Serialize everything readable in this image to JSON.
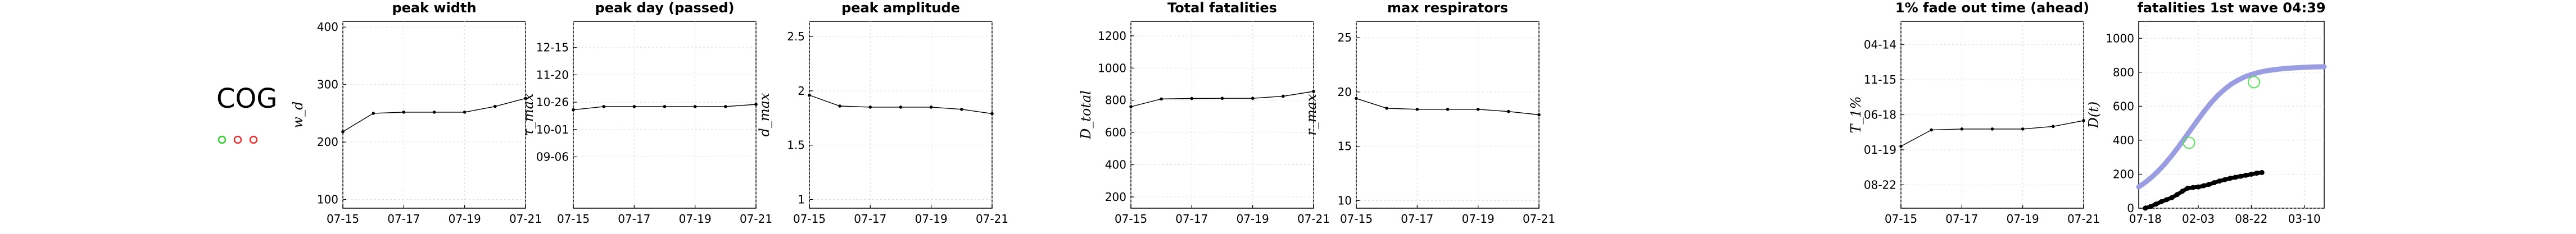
{
  "country": {
    "code": "COG",
    "markers": [
      {
        "color": "#33cc33"
      },
      {
        "color": "#e03030"
      },
      {
        "color": "#e03030"
      }
    ]
  },
  "chart_data": [
    {
      "type": "line",
      "title": "peak width",
      "ylabel": "w_d",
      "x": [
        "07-15",
        "07-16",
        "07-17",
        "07-18",
        "07-19",
        "07-20",
        "07-21"
      ],
      "x_ticks": [
        "07-15",
        "07-17",
        "07-19",
        "07-21"
      ],
      "y_ticks": [
        "100",
        "200",
        "300",
        "400"
      ],
      "ylim": [
        85,
        410
      ],
      "series": [
        {
          "values": [
            218,
            250,
            252,
            252,
            252,
            262,
            276
          ]
        }
      ]
    },
    {
      "type": "line",
      "title": "peak day (passed)",
      "ylabel": "τ_max",
      "x": [
        "07-15",
        "07-16",
        "07-17",
        "07-18",
        "07-19",
        "07-20",
        "07-21"
      ],
      "x_ticks": [
        "07-15",
        "07-17",
        "07-19",
        "07-21"
      ],
      "y_ticks": [
        "09-06",
        "10-01",
        "10-26",
        "11-20",
        "12-15"
      ],
      "y_tick_values": [
        0,
        25,
        50,
        75,
        100
      ],
      "ylim": [
        -47,
        124
      ],
      "series": [
        {
          "values": [
            43,
            46,
            46,
            46,
            46,
            46,
            48
          ]
        }
      ]
    },
    {
      "type": "line",
      "title": "peak amplitude",
      "ylabel": "d_max",
      "x": [
        "07-15",
        "07-16",
        "07-17",
        "07-18",
        "07-19",
        "07-20",
        "07-21"
      ],
      "x_ticks": [
        "07-15",
        "07-17",
        "07-19",
        "07-21"
      ],
      "y_ticks": [
        "1",
        "1.5",
        "2",
        "2.5"
      ],
      "ylim": [
        0.92,
        2.64
      ],
      "series": [
        {
          "values": [
            1.96,
            1.86,
            1.85,
            1.85,
            1.85,
            1.83,
            1.79
          ]
        }
      ]
    },
    {
      "type": "line",
      "title": "Total fatalities",
      "ylabel": "D_total",
      "x": [
        "07-15",
        "07-16",
        "07-17",
        "07-18",
        "07-19",
        "07-20",
        "07-21"
      ],
      "x_ticks": [
        "07-15",
        "07-17",
        "07-19",
        "07-21"
      ],
      "y_ticks": [
        "200",
        "400",
        "600",
        "800",
        "1000",
        "1200"
      ],
      "ylim": [
        130,
        1290
      ],
      "series": [
        {
          "values": [
            760,
            808,
            811,
            812,
            812,
            825,
            855
          ]
        }
      ]
    },
    {
      "type": "line",
      "title": "max respirators",
      "ylabel": "r_max",
      "x": [
        "07-15",
        "07-16",
        "07-17",
        "07-18",
        "07-19",
        "07-20",
        "07-21"
      ],
      "x_ticks": [
        "07-15",
        "07-17",
        "07-19",
        "07-21"
      ],
      "y_ticks": [
        "10",
        "15",
        "20",
        "25"
      ],
      "ylim": [
        9.3,
        26.5
      ],
      "series": [
        {
          "values": [
            19.4,
            18.5,
            18.4,
            18.4,
            18.4,
            18.2,
            17.9
          ]
        }
      ]
    },
    {
      "type": "line",
      "title": "1% fade out time (ahead)",
      "ylabel": "T_1%",
      "x": [
        "07-15",
        "07-16",
        "07-17",
        "07-18",
        "07-19",
        "07-20",
        "07-21"
      ],
      "x_ticks": [
        "07-15",
        "07-17",
        "07-19",
        "07-21"
      ],
      "y_ticks": [
        "08-22",
        "01-19",
        "06-18",
        "11-15",
        "04-14"
      ],
      "y_tick_values": [
        0,
        150,
        300,
        450,
        600
      ],
      "ylim": [
        -100,
        700
      ],
      "series": [
        {
          "values": [
            165,
            235,
            239,
            239,
            239,
            250,
            275
          ]
        }
      ]
    },
    {
      "type": "line",
      "title": "fatalities 1st wave 04:39",
      "ylabel": "D(t)",
      "x_ticks": [
        "07-18",
        "02-03",
        "08-22",
        "03-10"
      ],
      "x_tick_values": [
        0,
        200,
        400,
        600
      ],
      "y_ticks": [
        "0",
        "200",
        "400",
        "600",
        "800",
        "1000"
      ],
      "ylim": [
        0,
        1100
      ],
      "xlim": [
        -25,
        675
      ],
      "series": [
        {
          "kind": "curve",
          "color": "#9a9ee0",
          "x": [
            -25,
            0,
            25,
            50,
            75,
            100,
            125,
            150,
            175,
            200,
            225,
            250,
            275,
            300,
            325,
            350,
            375,
            400,
            425,
            450,
            475,
            500,
            525,
            550,
            575,
            600,
            625,
            650,
            675
          ],
          "values": [
            125,
            152,
            184,
            221,
            263,
            310,
            361,
            415,
            470,
            524,
            576,
            624,
            666,
            701,
            731,
            754,
            773,
            787,
            798,
            807,
            813,
            818,
            822,
            825,
            827,
            829,
            831,
            832,
            833
          ]
        },
        {
          "kind": "observed",
          "color": "#000000",
          "x": [
            0,
            20,
            40,
            60,
            80,
            100,
            120,
            140,
            160,
            180,
            200,
            220,
            240,
            260,
            280,
            300,
            320,
            340,
            360,
            380,
            400,
            420,
            440
          ],
          "values": [
            0,
            10,
            24,
            38,
            50,
            62,
            80,
            100,
            118,
            122,
            125,
            132,
            140,
            150,
            160,
            168,
            176,
            182,
            188,
            194,
            200,
            206,
            210
          ]
        },
        {
          "kind": "marker",
          "color": "#66dd66",
          "x": [
            165,
            410
          ],
          "values": [
            385,
            742
          ]
        }
      ]
    }
  ]
}
